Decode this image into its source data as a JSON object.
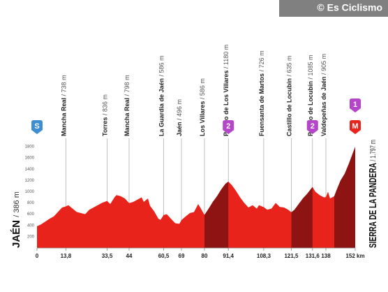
{
  "header": {
    "credit": "© Es Ciclismo"
  },
  "chart_data": {
    "type": "area",
    "start": {
      "name": "JAÉN",
      "detail": "/ 386 m"
    },
    "finish": {
      "name": "SIERRA DE LA PANDERA",
      "detail": "/ 1.797 m"
    },
    "x": [
      0,
      2,
      4,
      6,
      8,
      10,
      12,
      13.8,
      15,
      17,
      19,
      21,
      23,
      25,
      27,
      29,
      31,
      33.5,
      35,
      37,
      38,
      40,
      42,
      44,
      46,
      48,
      50,
      51,
      53,
      54,
      56,
      58,
      59,
      60.5,
      62,
      64,
      66,
      68,
      69,
      71,
      73,
      75,
      77,
      78,
      80,
      82,
      84,
      86,
      88,
      90,
      91.4,
      93,
      95,
      97,
      99,
      101,
      103,
      105,
      106,
      108.3,
      110,
      112,
      114,
      116,
      118,
      120,
      121.5,
      123,
      125,
      127,
      129,
      131.6,
      133,
      135,
      137,
      138,
      139,
      140,
      142,
      143,
      145,
      147,
      149,
      151,
      152
    ],
    "values": [
      386,
      420,
      470,
      520,
      560,
      640,
      720,
      738,
      760,
      700,
      640,
      620,
      600,
      680,
      720,
      760,
      800,
      836,
      780,
      900,
      940,
      920,
      880,
      798,
      820,
      860,
      900,
      820,
      880,
      750,
      650,
      520,
      500,
      586,
      600,
      520,
      440,
      430,
      496,
      560,
      620,
      640,
      780,
      720,
      586,
      700,
      820,
      920,
      1040,
      1140,
      1180,
      1120,
      1020,
      900,
      800,
      720,
      760,
      700,
      760,
      726,
      680,
      700,
      800,
      730,
      720,
      680,
      635,
      680,
      780,
      880,
      960,
      1085,
      1000,
      940,
      900,
      905,
      1000,
      880,
      920,
      1020,
      1200,
      1320,
      1500,
      1700,
      1797
    ],
    "color": "#e8231c",
    "climb_color": "#8e1414",
    "climbs": [
      [
        80,
        91.4
      ],
      [
        121.5,
        131.6
      ],
      [
        142,
        152
      ]
    ],
    "xlim": [
      0,
      152
    ],
    "ylim": [
      0,
      1800
    ],
    "xticks": [
      0,
      {
        "value": 13.8,
        "label": "13,8"
      },
      {
        "value": 33.5,
        "label": "33,5"
      },
      44,
      {
        "value": 60.5,
        "label": "60,5"
      },
      69,
      80,
      {
        "value": 91.4,
        "label": "91,4"
      },
      {
        "value": 108.3,
        "label": "108,3"
      },
      {
        "value": 121.5,
        "label": "121,5"
      },
      {
        "value": 131.6,
        "label": "131,6"
      },
      138,
      {
        "value": 152,
        "label": "152 km"
      }
    ],
    "yticks": [
      200,
      400,
      600,
      800,
      1000,
      1200,
      1400,
      1600,
      1800
    ],
    "grid": false,
    "waypoints": [
      {
        "km": 13.8,
        "name": "Mancha Real",
        "detail": "/ 738 m"
      },
      {
        "km": 33.5,
        "name": "Torres",
        "detail": "/ 836 m"
      },
      {
        "km": 44,
        "name": "Mancha Real",
        "detail": "/ 798 m"
      },
      {
        "km": 60.5,
        "name": "La Guardia de Jaén",
        "detail": "/ 586 m"
      },
      {
        "km": 69,
        "name": "Jaén",
        "detail": "/ 496 m"
      },
      {
        "km": 80,
        "name": "Los Villares",
        "detail": "/ 586 m"
      },
      {
        "km": 91.4,
        "name": "Puerto de Los Villares",
        "detail": "/ 1180 m"
      },
      {
        "km": 108.3,
        "name": "Fuensanta de Martos",
        "detail": "/ 726 m"
      },
      {
        "km": 121.5,
        "name": "Castillo de Locubín",
        "detail": "/ 635 m"
      },
      {
        "km": 131.6,
        "name": "Puerto de Locubín",
        "detail": "/ 1085 m"
      },
      {
        "km": 138,
        "name": "Valdepeñas de Jaén",
        "detail": "/ 905 m"
      }
    ],
    "badges": [
      {
        "km": 0,
        "label": "S",
        "color": "#3d8fd1"
      },
      {
        "km": 91.4,
        "label": "2",
        "color": "#b646c9"
      },
      {
        "km": 131.6,
        "label": "2",
        "color": "#b646c9"
      },
      {
        "km": 152,
        "label": "M",
        "color": "#e8231c"
      },
      {
        "km": 152,
        "label": "1",
        "color": "#b646c9"
      }
    ]
  }
}
